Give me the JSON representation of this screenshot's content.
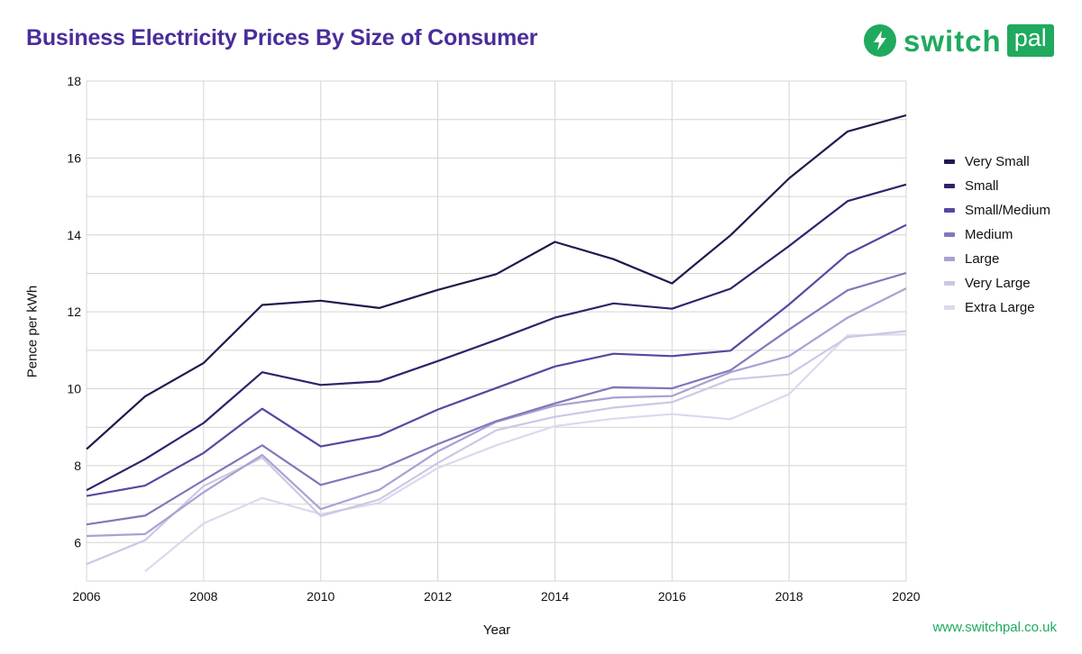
{
  "header": {
    "title": "Business Electricity Prices By Size of Consumer"
  },
  "logo": {
    "icon": "lightning-bolt-icon",
    "word": "switch",
    "box_word": "pal",
    "color": "#1faa5e"
  },
  "footer": {
    "url": "www.switchpal.co.uk"
  },
  "chart_data": {
    "type": "line",
    "title": "Business Electricity Prices By Size of Consumer",
    "xlabel": "Year",
    "ylabel": "Pence per kWh",
    "x": [
      2006,
      2007,
      2008,
      2009,
      2010,
      2011,
      2012,
      2013,
      2014,
      2015,
      2016,
      2017,
      2018,
      2019,
      2020
    ],
    "xlim": [
      2006,
      2020
    ],
    "ylim": [
      5,
      18
    ],
    "xticks": [
      2006,
      2008,
      2010,
      2012,
      2014,
      2016,
      2018,
      2020
    ],
    "yticks": [
      6,
      8,
      10,
      12,
      14,
      16,
      18
    ],
    "grid": true,
    "legend_position": "right",
    "series": [
      {
        "name": "Very Small",
        "color": "#1e1a4d",
        "values": [
          8.43,
          9.8,
          10.67,
          12.18,
          12.29,
          12.1,
          12.57,
          12.98,
          13.82,
          13.37,
          12.74,
          13.99,
          15.47,
          16.69,
          17.11
        ]
      },
      {
        "name": "Small",
        "color": "#34206b",
        "values": [
          7.36,
          8.17,
          9.11,
          10.43,
          10.1,
          10.19,
          10.72,
          11.27,
          11.85,
          12.22,
          12.08,
          12.6,
          13.71,
          14.88,
          15.31
        ]
      },
      {
        "name": "Small/Medium",
        "color": "#5a45a0",
        "values": [
          7.21,
          7.48,
          8.33,
          9.48,
          8.5,
          8.78,
          9.46,
          10.02,
          10.58,
          10.91,
          10.85,
          10.99,
          12.19,
          13.5,
          14.26
        ]
      },
      {
        "name": "Medium",
        "color": "#8576bb",
        "values": [
          6.47,
          6.7,
          7.62,
          8.53,
          7.5,
          7.9,
          8.56,
          9.16,
          9.62,
          10.04,
          10.01,
          10.48,
          11.54,
          12.56,
          13.01
        ]
      },
      {
        "name": "Large",
        "color": "#aaa1d2",
        "values": [
          6.17,
          6.22,
          7.31,
          8.28,
          6.87,
          7.37,
          8.37,
          9.14,
          9.56,
          9.77,
          9.81,
          10.43,
          10.85,
          11.85,
          12.61
        ]
      },
      {
        "name": "Very Large",
        "color": "#cdc7e5",
        "values": [
          5.44,
          6.06,
          7.47,
          8.21,
          6.69,
          7.12,
          8.07,
          8.92,
          9.27,
          9.51,
          9.65,
          10.24,
          10.37,
          11.34,
          11.5
        ]
      },
      {
        "name": "Extra Large",
        "color": "#dcd8ee",
        "values": [
          null,
          5.25,
          6.5,
          7.16,
          6.74,
          7.03,
          7.94,
          8.53,
          9.03,
          9.22,
          9.34,
          9.21,
          9.86,
          11.39,
          11.41
        ]
      }
    ]
  }
}
